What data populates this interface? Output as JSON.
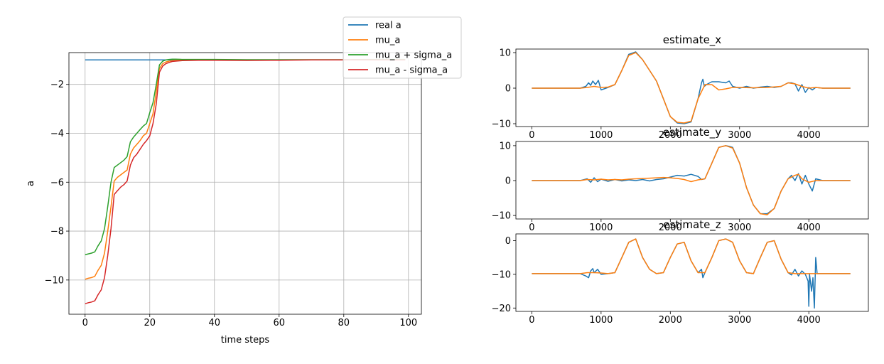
{
  "chart_data": [
    {
      "type": "line",
      "title": "",
      "xlabel": "time steps",
      "ylabel": "a",
      "xlim": [
        -5,
        104
      ],
      "ylim": [
        -11.4,
        -0.7
      ],
      "xticks": [
        0,
        20,
        40,
        60,
        80,
        100
      ],
      "yticks": [
        -10,
        -8,
        -6,
        -4,
        -2
      ],
      "grid": true,
      "legend_position": "top-right",
      "series": [
        {
          "name": "real a",
          "color": "#1f77b4",
          "x": [
            0,
            99
          ],
          "y": [
            -1.0,
            -1.0
          ]
        },
        {
          "name": "mu_a",
          "color": "#ff7f0e",
          "x": [
            0,
            1,
            2,
            3,
            4,
            5,
            6,
            7,
            8,
            9,
            10,
            11,
            12,
            13,
            14,
            15,
            16,
            17,
            18,
            19,
            20,
            21,
            22,
            23,
            24,
            25,
            26,
            27,
            28,
            30,
            35,
            40,
            50,
            60,
            70,
            80,
            90,
            99
          ],
          "y": [
            -9.97,
            -9.93,
            -9.9,
            -9.85,
            -9.6,
            -9.4,
            -8.9,
            -8.0,
            -7.0,
            -5.95,
            -5.8,
            -5.7,
            -5.6,
            -5.5,
            -4.85,
            -4.6,
            -4.45,
            -4.3,
            -4.1,
            -4.0,
            -3.6,
            -3.2,
            -2.3,
            -1.35,
            -1.15,
            -1.08,
            -1.05,
            -1.03,
            -1.02,
            -1.01,
            -1.0,
            -1.0,
            -1.01,
            -1.0,
            -1.0,
            -1.0,
            -0.99,
            -0.99
          ]
        },
        {
          "name": "mu_a + sigma_a",
          "color": "#2ca02c",
          "x": [
            0,
            1,
            2,
            3,
            4,
            5,
            6,
            7,
            8,
            9,
            10,
            11,
            12,
            13,
            14,
            15,
            16,
            17,
            18,
            19,
            20,
            21,
            22,
            23,
            24,
            25,
            26,
            27,
            28,
            30,
            35,
            40,
            50,
            60,
            70,
            80,
            90,
            99
          ],
          "y": [
            -8.97,
            -8.93,
            -8.9,
            -8.85,
            -8.6,
            -8.4,
            -7.9,
            -7.0,
            -6.0,
            -5.4,
            -5.3,
            -5.2,
            -5.1,
            -4.95,
            -4.35,
            -4.15,
            -4.0,
            -3.85,
            -3.7,
            -3.6,
            -3.15,
            -2.75,
            -2.0,
            -1.2,
            -1.05,
            -1.0,
            -0.98,
            -0.97,
            -0.97,
            -0.98,
            -0.98,
            -0.98,
            -0.99,
            -0.99,
            -0.99,
            -0.99,
            -0.98,
            -0.98
          ]
        },
        {
          "name": "mu_a - sigma_a",
          "color": "#d62728",
          "x": [
            0,
            1,
            2,
            3,
            4,
            5,
            6,
            7,
            8,
            9,
            10,
            11,
            12,
            13,
            14,
            15,
            16,
            17,
            18,
            19,
            20,
            21,
            22,
            23,
            24,
            25,
            26,
            27,
            28,
            30,
            35,
            40,
            50,
            60,
            70,
            80,
            90,
            99
          ],
          "y": [
            -10.97,
            -10.93,
            -10.9,
            -10.85,
            -10.6,
            -10.4,
            -9.9,
            -9.0,
            -7.9,
            -6.5,
            -6.35,
            -6.2,
            -6.1,
            -5.95,
            -5.3,
            -5.0,
            -4.85,
            -4.65,
            -4.45,
            -4.3,
            -4.1,
            -3.6,
            -2.8,
            -1.5,
            -1.25,
            -1.15,
            -1.1,
            -1.06,
            -1.05,
            -1.03,
            -1.01,
            -1.01,
            -1.02,
            -1.01,
            -1.0,
            -1.0,
            -1.0,
            -1.0
          ]
        }
      ]
    },
    {
      "type": "line",
      "title": "estimate_x",
      "xlim": [
        -230,
        4860
      ],
      "ylim": [
        -10.8,
        11.0
      ],
      "xticks": [
        0,
        1000,
        2000,
        3000,
        4000
      ],
      "yticks": [
        -10,
        0,
        10
      ],
      "series": [
        {
          "color": "#1f77b4",
          "x": [
            0,
            700,
            780,
            820,
            850,
            880,
            920,
            960,
            1000,
            1100,
            1200,
            1300,
            1400,
            1500,
            1600,
            1700,
            1800,
            1900,
            2000,
            2100,
            2200,
            2300,
            2400,
            2450,
            2470,
            2490,
            2520,
            2600,
            2700,
            2800,
            2850,
            2900,
            3000,
            3100,
            3200,
            3300,
            3400,
            3500,
            3600,
            3700,
            3750,
            3800,
            3850,
            3900,
            3950,
            4000,
            4050,
            4100,
            4200,
            4400,
            4600
          ],
          "y": [
            0,
            0,
            0.5,
            1.5,
            0.8,
            2.0,
            1.0,
            2.2,
            -0.5,
            0.2,
            1.0,
            5.0,
            9.5,
            10.2,
            8.0,
            5.0,
            2.0,
            -3.0,
            -8.0,
            -9.8,
            -10.0,
            -9.5,
            -3.0,
            1.5,
            2.5,
            0.5,
            1.0,
            1.8,
            1.8,
            1.5,
            2.0,
            0.5,
            0.0,
            0.5,
            0.0,
            0.3,
            0.5,
            0.2,
            0.5,
            1.5,
            1.5,
            1.2,
            -0.8,
            1.0,
            -1.2,
            0.2,
            -0.5,
            0.2,
            0,
            0,
            0
          ]
        },
        {
          "color": "#ff7f0e",
          "x": [
            0,
            700,
            800,
            900,
            1000,
            1100,
            1200,
            1300,
            1400,
            1500,
            1600,
            1700,
            1800,
            1900,
            2000,
            2100,
            2200,
            2300,
            2400,
            2500,
            2600,
            2700,
            2800,
            2900,
            3000,
            3200,
            3400,
            3600,
            3700,
            3800,
            3900,
            4000,
            4100,
            4200,
            4600
          ],
          "y": [
            0,
            0,
            0.2,
            0.5,
            0.2,
            0.3,
            1.0,
            5.0,
            9.2,
            10.0,
            8.0,
            5.0,
            2.0,
            -3.0,
            -8.0,
            -9.6,
            -9.8,
            -9.3,
            -3.0,
            1.0,
            1.0,
            -0.5,
            -0.2,
            0.2,
            0.2,
            0.1,
            0.2,
            0.5,
            1.5,
            1.2,
            0.5,
            0.0,
            0.2,
            0,
            0
          ]
        }
      ]
    },
    {
      "type": "line",
      "title": "estimate_y",
      "xlim": [
        -230,
        4860
      ],
      "ylim": [
        -11.0,
        11.2
      ],
      "xticks": [
        0,
        1000,
        2000,
        3000,
        4000
      ],
      "yticks": [
        -10,
        0,
        10
      ],
      "series": [
        {
          "color": "#1f77b4",
          "x": [
            0,
            700,
            800,
            850,
            900,
            950,
            1000,
            1100,
            1200,
            1300,
            1400,
            1500,
            1600,
            1700,
            1800,
            1900,
            2000,
            2100,
            2200,
            2300,
            2400,
            2450,
            2500,
            2600,
            2700,
            2800,
            2850,
            2900,
            3000,
            3100,
            3200,
            3300,
            3400,
            3500,
            3600,
            3700,
            3750,
            3800,
            3850,
            3900,
            3950,
            4000,
            4050,
            4100,
            4200,
            4600
          ],
          "y": [
            0,
            0,
            0.5,
            -0.5,
            0.8,
            -0.3,
            0.4,
            -0.2,
            0.3,
            -0.1,
            0.2,
            0.0,
            0.3,
            -0.1,
            0.3,
            0.5,
            1.0,
            1.5,
            1.3,
            1.8,
            1.2,
            0.3,
            0.5,
            5.0,
            9.5,
            10.0,
            9.8,
            9.5,
            5.0,
            -2.0,
            -7.0,
            -9.5,
            -9.5,
            -8.0,
            -3.0,
            0.5,
            1.5,
            0.0,
            2.0,
            -1.0,
            1.5,
            -1.0,
            -3.0,
            0.5,
            0,
            0
          ]
        },
        {
          "color": "#ff7f0e",
          "x": [
            0,
            700,
            800,
            900,
            1000,
            1100,
            1200,
            1300,
            1400,
            1500,
            1600,
            1700,
            1800,
            1900,
            2000,
            2100,
            2200,
            2300,
            2400,
            2500,
            2600,
            2700,
            2800,
            2900,
            3000,
            3100,
            3200,
            3300,
            3400,
            3500,
            3600,
            3700,
            3800,
            3850,
            3900,
            4000,
            4100,
            4200,
            4600
          ],
          "y": [
            0,
            0,
            0.3,
            0.2,
            0.4,
            0.2,
            0.3,
            0.2,
            0.4,
            0.5,
            0.6,
            0.7,
            0.8,
            0.9,
            0.8,
            0.6,
            0.3,
            -0.3,
            0.2,
            0.5,
            5.0,
            9.5,
            10.0,
            9.3,
            5.0,
            -2.0,
            -7.0,
            -9.5,
            -9.8,
            -8.0,
            -3.0,
            0.5,
            1.5,
            1.8,
            0.5,
            -0.5,
            0.0,
            0,
            0
          ]
        }
      ]
    },
    {
      "type": "line",
      "title": "estimate_z",
      "xlim": [
        -230,
        4860
      ],
      "ylim": [
        -21.0,
        2.0
      ],
      "xticks": [
        0,
        1000,
        2000,
        3000,
        4000
      ],
      "yticks": [
        -20,
        -10,
        0
      ],
      "series": [
        {
          "color": "#1f77b4",
          "x": [
            0,
            700,
            780,
            820,
            850,
            880,
            900,
            950,
            1000,
            1100,
            1200,
            1300,
            1400,
            1500,
            1600,
            1700,
            1800,
            1900,
            2000,
            2100,
            2200,
            2300,
            2400,
            2450,
            2470,
            2500,
            2600,
            2700,
            2800,
            2900,
            3000,
            3100,
            3200,
            3300,
            3400,
            3500,
            3600,
            3700,
            3750,
            3800,
            3850,
            3900,
            3950,
            3990,
            4000,
            4010,
            4040,
            4060,
            4080,
            4100,
            4120,
            4200,
            4600
          ],
          "y": [
            -9.8,
            -9.8,
            -10.5,
            -11.0,
            -9.0,
            -8.3,
            -9.5,
            -8.5,
            -10.0,
            -9.8,
            -9.5,
            -5.0,
            -0.5,
            0.5,
            -5.0,
            -8.5,
            -9.8,
            -9.5,
            -5.0,
            -1.0,
            -0.5,
            -6.0,
            -9.5,
            -8.5,
            -11.0,
            -9.5,
            -5.0,
            0.0,
            0.5,
            -0.5,
            -6.0,
            -9.5,
            -9.8,
            -5.0,
            -0.5,
            0.0,
            -5.5,
            -9.5,
            -10.2,
            -8.5,
            -10.5,
            -9.0,
            -10.0,
            -12.0,
            -19.5,
            -10.0,
            -15.0,
            -11.0,
            -20.0,
            -5.0,
            -9.8,
            -9.8,
            -9.8
          ]
        },
        {
          "color": "#ff7f0e",
          "x": [
            0,
            700,
            800,
            900,
            1000,
            1100,
            1200,
            1300,
            1400,
            1500,
            1600,
            1700,
            1800,
            1900,
            2000,
            2100,
            2200,
            2300,
            2400,
            2500,
            2600,
            2700,
            2800,
            2900,
            3000,
            3100,
            3200,
            3300,
            3400,
            3500,
            3600,
            3700,
            3800,
            3900,
            4000,
            4100,
            4200,
            4600
          ],
          "y": [
            -9.8,
            -9.8,
            -9.5,
            -9.5,
            -9.6,
            -9.8,
            -9.5,
            -5.0,
            -0.5,
            0.5,
            -5.0,
            -8.5,
            -9.8,
            -9.5,
            -5.0,
            -1.0,
            -0.5,
            -6.0,
            -9.5,
            -9.5,
            -5.0,
            0.0,
            0.5,
            -0.5,
            -6.0,
            -9.5,
            -9.8,
            -5.0,
            -0.5,
            0.0,
            -5.5,
            -9.5,
            -9.8,
            -9.8,
            -9.8,
            -9.8,
            -9.8,
            -9.8
          ]
        }
      ]
    }
  ]
}
